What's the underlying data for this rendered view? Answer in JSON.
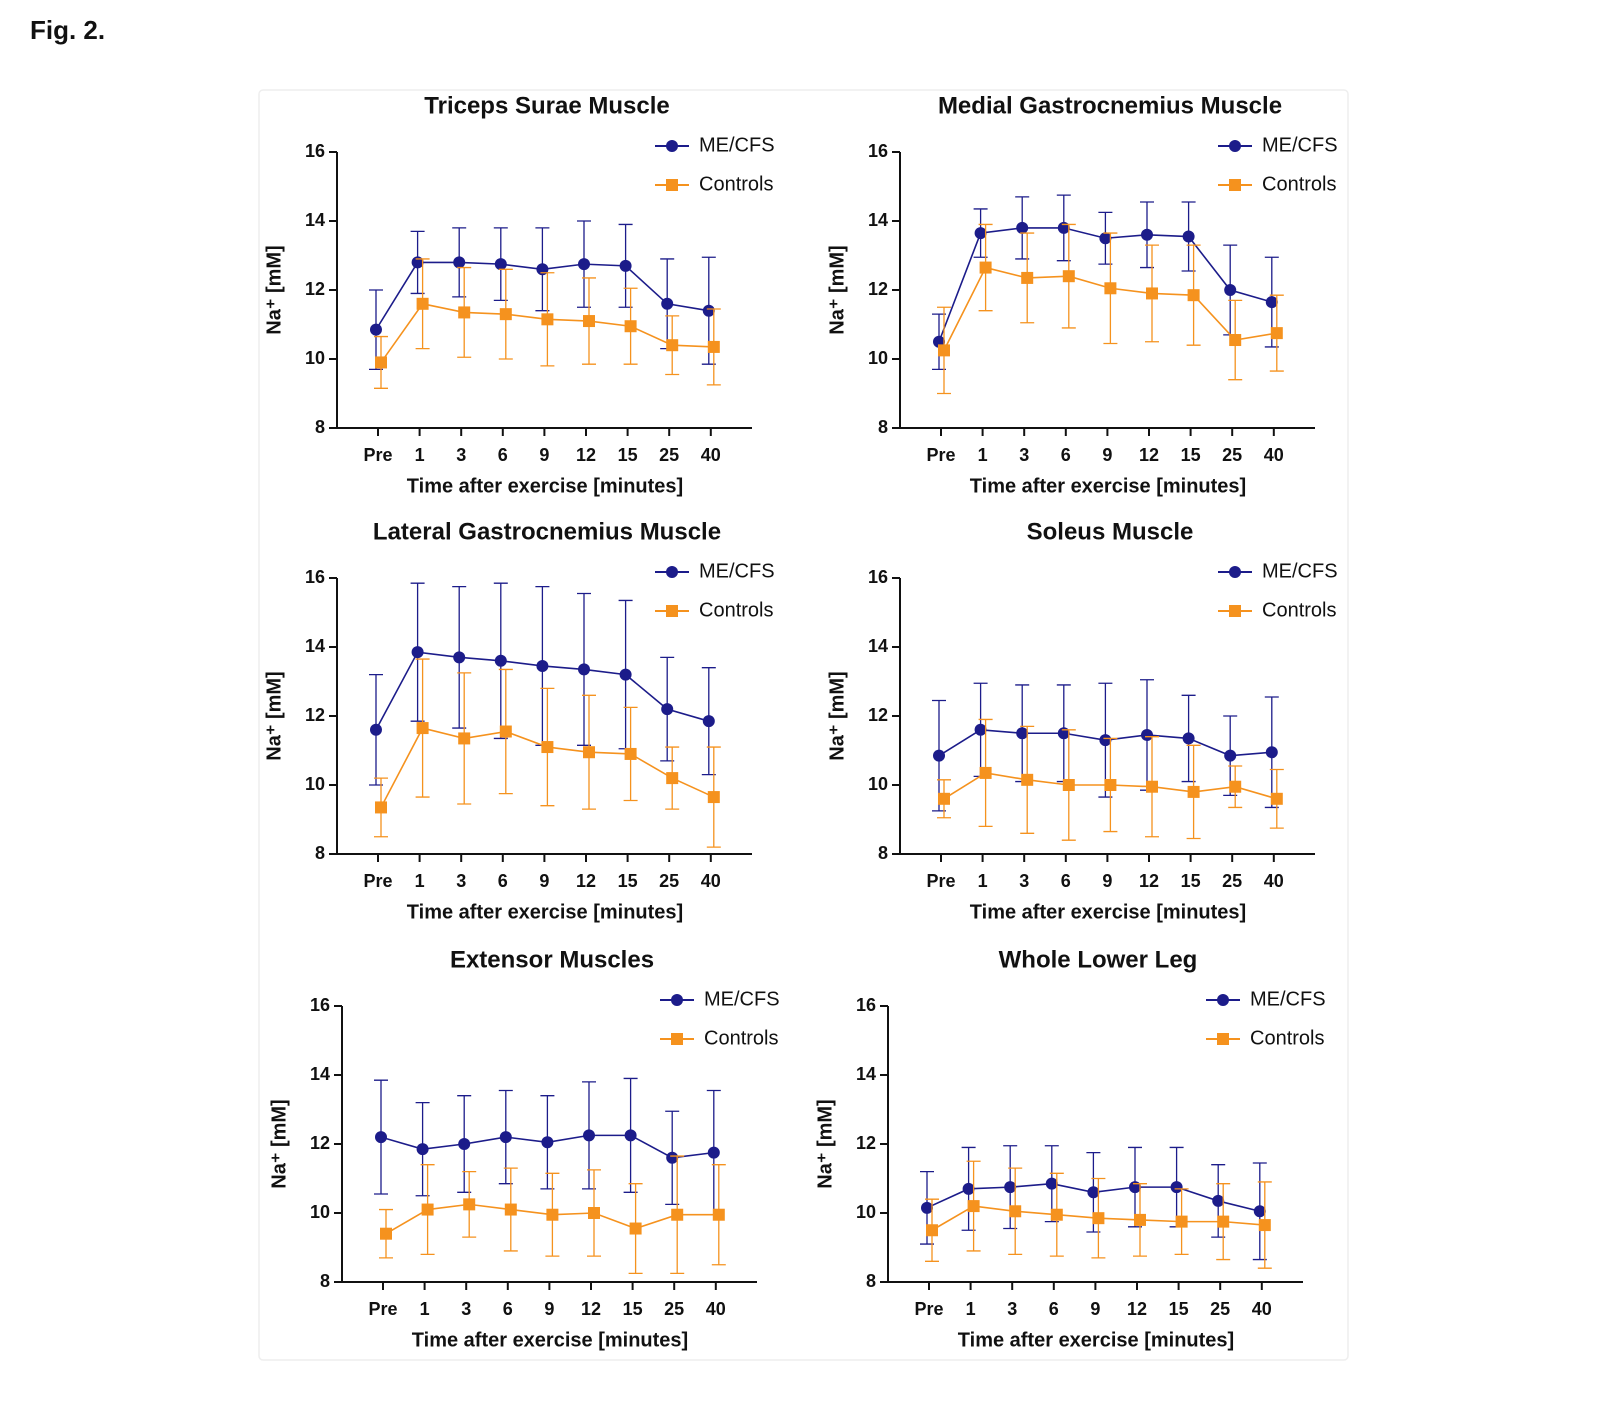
{
  "figure_label": "Fig. 2.",
  "chart_data": [
    {
      "type": "line",
      "title": "Triceps Surae Muscle",
      "x_label": "Time after exercise [minutes]",
      "y_label": "Na⁺ [mM]",
      "categories": [
        "Pre",
        "1",
        "3",
        "6",
        "9",
        "12",
        "15",
        "25",
        "40"
      ],
      "ylim": [
        8,
        16
      ],
      "yticks": [
        8,
        10,
        12,
        14,
        16
      ],
      "series": [
        {
          "name": "ME/CFS",
          "color": "#1c1c8a",
          "marker": "circle",
          "values": [
            10.85,
            12.8,
            12.8,
            12.75,
            12.6,
            12.75,
            12.7,
            11.6,
            11.4
          ],
          "errors": [
            1.15,
            0.9,
            1.0,
            1.05,
            1.2,
            1.25,
            1.2,
            1.3,
            1.55
          ]
        },
        {
          "name": "Controls",
          "color": "#f5921e",
          "marker": "square",
          "values": [
            9.9,
            11.6,
            11.35,
            11.3,
            11.15,
            11.1,
            10.95,
            10.4,
            10.35
          ],
          "errors": [
            0.75,
            1.3,
            1.3,
            1.3,
            1.35,
            1.25,
            1.1,
            0.85,
            1.1
          ]
        }
      ]
    },
    {
      "type": "line",
      "title": "Medial Gastrocnemius Muscle",
      "x_label": "Time after exercise [minutes]",
      "y_label": "Na⁺ [mM]",
      "categories": [
        "Pre",
        "1",
        "3",
        "6",
        "9",
        "12",
        "15",
        "25",
        "40"
      ],
      "ylim": [
        8,
        16
      ],
      "yticks": [
        8,
        10,
        12,
        14,
        16
      ],
      "series": [
        {
          "name": "ME/CFS",
          "color": "#1c1c8a",
          "marker": "circle",
          "values": [
            10.5,
            13.65,
            13.8,
            13.8,
            13.5,
            13.6,
            13.55,
            12.0,
            11.65
          ],
          "errors": [
            0.8,
            0.7,
            0.9,
            0.95,
            0.75,
            0.95,
            1.0,
            1.3,
            1.3
          ]
        },
        {
          "name": "Controls",
          "color": "#f5921e",
          "marker": "square",
          "values": [
            10.25,
            12.65,
            12.35,
            12.4,
            12.05,
            11.9,
            11.85,
            10.55,
            10.75
          ],
          "errors": [
            1.25,
            1.25,
            1.3,
            1.5,
            1.6,
            1.4,
            1.45,
            1.15,
            1.1
          ]
        }
      ]
    },
    {
      "type": "line",
      "title": "Lateral Gastrocnemius Muscle",
      "x_label": "Time after exercise [minutes]",
      "y_label": "Na⁺ [mM]",
      "categories": [
        "Pre",
        "1",
        "3",
        "6",
        "9",
        "12",
        "15",
        "25",
        "40"
      ],
      "ylim": [
        8,
        16
      ],
      "yticks": [
        8,
        10,
        12,
        14,
        16
      ],
      "series": [
        {
          "name": "ME/CFS",
          "color": "#1c1c8a",
          "marker": "circle",
          "values": [
            11.6,
            13.85,
            13.7,
            13.6,
            13.45,
            13.35,
            13.2,
            12.2,
            11.85
          ],
          "errors": [
            1.6,
            2.0,
            2.05,
            2.25,
            2.3,
            2.2,
            2.15,
            1.5,
            1.55
          ]
        },
        {
          "name": "Controls",
          "color": "#f5921e",
          "marker": "square",
          "values": [
            9.35,
            11.65,
            11.35,
            11.55,
            11.1,
            10.95,
            10.9,
            10.2,
            9.65
          ],
          "errors": [
            0.85,
            2.0,
            1.9,
            1.8,
            1.7,
            1.65,
            1.35,
            0.9,
            1.45
          ]
        }
      ]
    },
    {
      "type": "line",
      "title": "Soleus Muscle",
      "x_label": "Time after exercise [minutes]",
      "y_label": "Na⁺ [mM]",
      "categories": [
        "Pre",
        "1",
        "3",
        "6",
        "9",
        "12",
        "15",
        "25",
        "40"
      ],
      "ylim": [
        8,
        16
      ],
      "yticks": [
        8,
        10,
        12,
        14,
        16
      ],
      "series": [
        {
          "name": "ME/CFS",
          "color": "#1c1c8a",
          "marker": "circle",
          "values": [
            10.85,
            11.6,
            11.5,
            11.5,
            11.3,
            11.45,
            11.35,
            10.85,
            10.95
          ],
          "errors": [
            1.6,
            1.35,
            1.4,
            1.4,
            1.65,
            1.6,
            1.25,
            1.15,
            1.6
          ]
        },
        {
          "name": "Controls",
          "color": "#f5921e",
          "marker": "square",
          "values": [
            9.6,
            10.35,
            10.15,
            10.0,
            10.0,
            9.95,
            9.8,
            9.95,
            9.6
          ],
          "errors": [
            0.55,
            1.55,
            1.55,
            1.6,
            1.35,
            1.45,
            1.35,
            0.6,
            0.85
          ]
        }
      ]
    },
    {
      "type": "line",
      "title": "Extensor Muscles",
      "x_label": "Time after exercise [minutes]",
      "y_label": "Na⁺ [mM]",
      "categories": [
        "Pre",
        "1",
        "3",
        "6",
        "9",
        "12",
        "15",
        "25",
        "40"
      ],
      "ylim": [
        8,
        16
      ],
      "yticks": [
        8,
        10,
        12,
        14,
        16
      ],
      "series": [
        {
          "name": "ME/CFS",
          "color": "#1c1c8a",
          "marker": "circle",
          "values": [
            12.2,
            11.85,
            12.0,
            12.2,
            12.05,
            12.25,
            12.25,
            11.6,
            11.75
          ],
          "errors": [
            1.65,
            1.35,
            1.4,
            1.35,
            1.35,
            1.55,
            1.65,
            1.35,
            1.8
          ]
        },
        {
          "name": "Controls",
          "color": "#f5921e",
          "marker": "square",
          "values": [
            9.4,
            10.1,
            10.25,
            10.1,
            9.95,
            10.0,
            9.55,
            9.95,
            9.95
          ],
          "errors": [
            0.7,
            1.3,
            0.95,
            1.2,
            1.2,
            1.25,
            1.3,
            1.7,
            1.45
          ]
        }
      ]
    },
    {
      "type": "line",
      "title": "Whole Lower Leg",
      "x_label": "Time after exercise [minutes]",
      "y_label": "Na⁺ [mM]",
      "categories": [
        "Pre",
        "1",
        "3",
        "6",
        "9",
        "12",
        "15",
        "25",
        "40"
      ],
      "ylim": [
        8,
        16
      ],
      "yticks": [
        8,
        10,
        12,
        14,
        16
      ],
      "series": [
        {
          "name": "ME/CFS",
          "color": "#1c1c8a",
          "marker": "circle",
          "values": [
            10.15,
            10.7,
            10.75,
            10.85,
            10.6,
            10.75,
            10.75,
            10.35,
            10.05
          ],
          "errors": [
            1.05,
            1.2,
            1.2,
            1.1,
            1.15,
            1.15,
            1.15,
            1.05,
            1.4
          ]
        },
        {
          "name": "Controls",
          "color": "#f5921e",
          "marker": "square",
          "values": [
            9.5,
            10.2,
            10.05,
            9.95,
            9.85,
            9.8,
            9.75,
            9.75,
            9.65
          ],
          "errors": [
            0.9,
            1.3,
            1.25,
            1.2,
            1.15,
            1.05,
            0.95,
            1.1,
            1.25
          ]
        }
      ]
    }
  ]
}
